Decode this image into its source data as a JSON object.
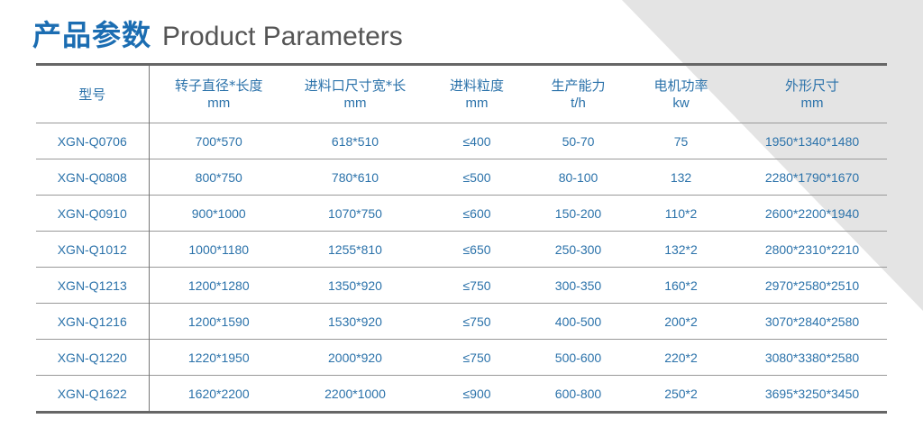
{
  "title": {
    "cn": "产品参数",
    "en": "Product Parameters"
  },
  "colors": {
    "accent": "#1b6db2",
    "text": "#2b72aa",
    "decor": "#e4e4e4"
  },
  "table": {
    "headers": [
      {
        "name": "型号",
        "unit": ""
      },
      {
        "name": "转子直径*长度",
        "unit": "mm"
      },
      {
        "name": "进料口尺寸宽*长",
        "unit": "mm"
      },
      {
        "name": "进料粒度",
        "unit": "mm"
      },
      {
        "name": "生产能力",
        "unit": "t/h"
      },
      {
        "name": "电机功率",
        "unit": "kw"
      },
      {
        "name": "外形尺寸",
        "unit": "mm"
      }
    ],
    "rows": [
      [
        "XGN-Q0706",
        "700*570",
        "618*510",
        "≤400",
        "50-70",
        "75",
        "1950*1340*1480"
      ],
      [
        "XGN-Q0808",
        "800*750",
        "780*610",
        "≤500",
        "80-100",
        "132",
        "2280*1790*1670"
      ],
      [
        "XGN-Q0910",
        "900*1000",
        "1070*750",
        "≤600",
        "150-200",
        "110*2",
        "2600*2200*1940"
      ],
      [
        "XGN-Q1012",
        "1000*1180",
        "1255*810",
        "≤650",
        "250-300",
        "132*2",
        "2800*2310*2210"
      ],
      [
        "XGN-Q1213",
        "1200*1280",
        "1350*920",
        "≤750",
        "300-350",
        "160*2",
        "2970*2580*2510"
      ],
      [
        "XGN-Q1216",
        "1200*1590",
        "1530*920",
        "≤750",
        "400-500",
        "200*2",
        "3070*2840*2580"
      ],
      [
        "XGN-Q1220",
        "1220*1950",
        "2000*920",
        "≤750",
        "500-600",
        "220*2",
        "3080*3380*2580"
      ],
      [
        "XGN-Q1622",
        "1620*2200",
        "2200*1000",
        "≤900",
        "600-800",
        "250*2",
        "3695*3250*3450"
      ]
    ]
  }
}
